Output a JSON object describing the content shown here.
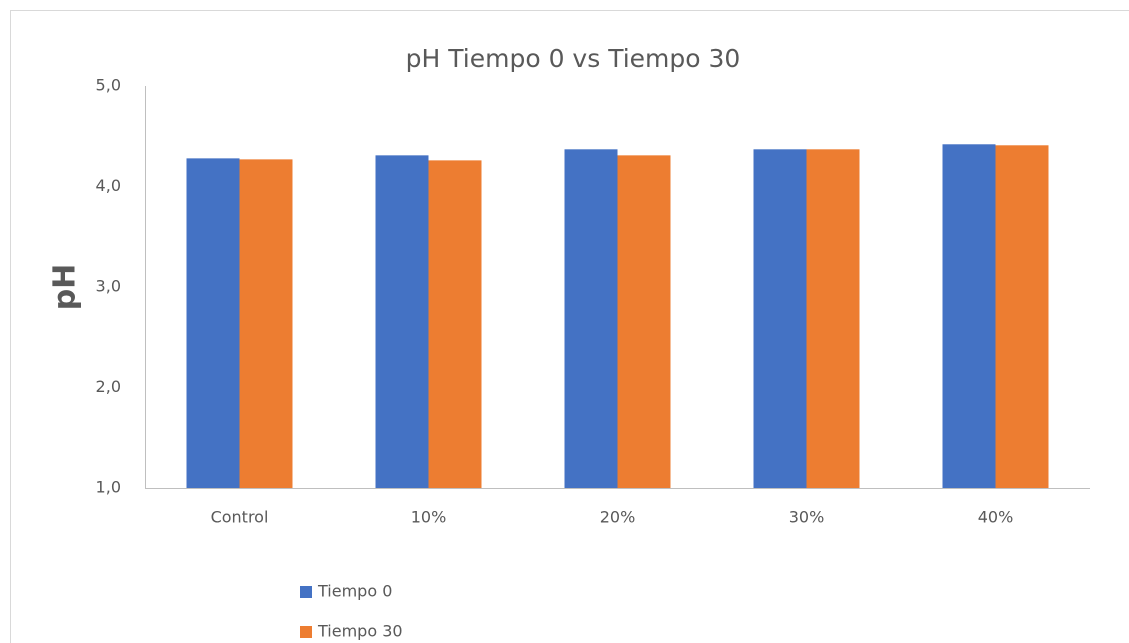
{
  "chart_data": {
    "type": "bar",
    "title": "pH Tiempo 0 vs Tiempo 30",
    "y_label": "pH",
    "categories": [
      "Control",
      "10%",
      "20%",
      "30%",
      "40%"
    ],
    "series": [
      {
        "name": "Tiempo 0",
        "color": "#4472c4",
        "values": [
          4.28,
          4.31,
          4.37,
          4.37,
          4.42
        ]
      },
      {
        "name": "Tiempo 30",
        "color": "#ed7d31",
        "values": [
          4.27,
          4.26,
          4.31,
          4.37,
          4.41
        ]
      }
    ],
    "ylim": [
      1,
      5
    ],
    "yticks": [
      {
        "value": 1,
        "label": "1,0"
      },
      {
        "value": 2,
        "label": "2,0"
      },
      {
        "value": 3,
        "label": "3,0"
      },
      {
        "value": 4,
        "label": "4,0"
      },
      {
        "value": 5,
        "label": "5,0"
      }
    ],
    "grid": false,
    "legend": "bottom-left"
  }
}
